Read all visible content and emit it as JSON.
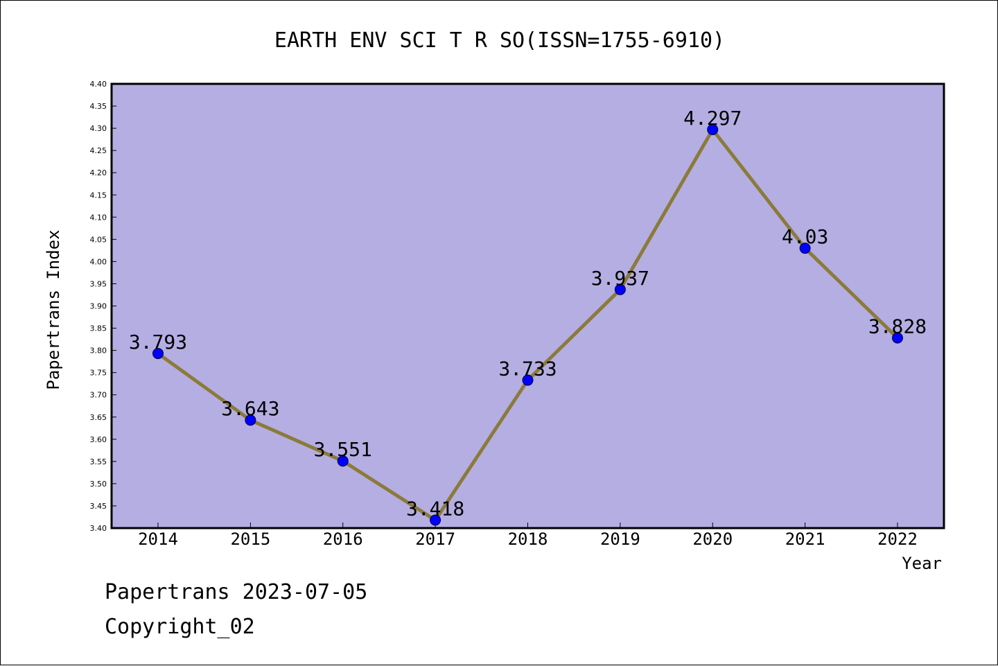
{
  "chart_data": {
    "type": "line",
    "title": "EARTH ENV SCI T R SO(ISSN=1755-6910)",
    "xlabel": "Year",
    "ylabel": "Papertrans Index",
    "categories": [
      "2014",
      "2015",
      "2016",
      "2017",
      "2018",
      "2019",
      "2020",
      "2021",
      "2022"
    ],
    "series": [
      {
        "values": [
          3.793,
          3.643,
          3.551,
          3.418,
          3.733,
          3.937,
          4.297,
          4.03,
          3.828
        ],
        "labels": [
          "3.793",
          "3.643",
          "3.551",
          "3.418",
          "3.733",
          "3.937",
          "4.297",
          "4.03",
          "3.828"
        ]
      }
    ],
    "ylim": [
      3.4,
      4.4
    ],
    "yticks": [
      "3.40",
      "3.45",
      "3.50",
      "3.55",
      "3.60",
      "3.65",
      "3.70",
      "3.75",
      "3.80",
      "3.85",
      "3.90",
      "3.95",
      "4.00",
      "4.05",
      "4.10",
      "4.15",
      "4.20",
      "4.25",
      "4.30",
      "4.35",
      "4.40"
    ],
    "grid": false,
    "colors": {
      "plot_background": "#b4aee2",
      "line": "#8b7a3a",
      "marker": "#0000ff"
    }
  },
  "footer": {
    "line1": "Papertrans 2023-07-05",
    "line2": "Copyright_02"
  }
}
